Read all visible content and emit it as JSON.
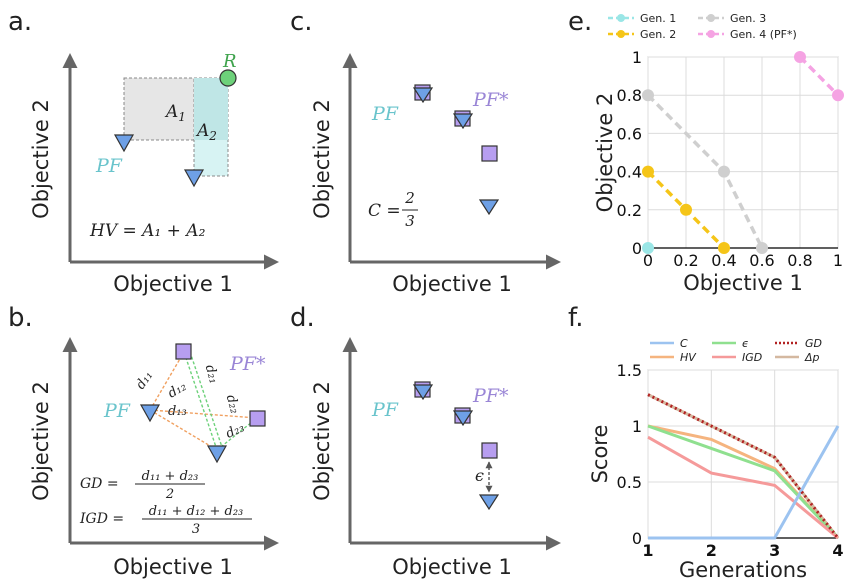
{
  "colors": {
    "pf_blue": "#6ea0e6",
    "pfstar_purple": "#b79ef0",
    "teal_text": "#6ac4cc",
    "purple_text": "#9a86d6",
    "green_R": "#6dd17a",
    "gen1": "#9ae6e6",
    "gen2": "#f5c518",
    "gen3": "#cfcfcf",
    "gen4": "#f5a3e3"
  },
  "panels": {
    "a": {
      "label": "a.",
      "xlabel": "Objective 1",
      "ylabel": "Objective 2",
      "ref": "R",
      "pf": "PF",
      "area1": "A",
      "area1_sub": "1",
      "area2": "A",
      "area2_sub": "2",
      "formula": "HV = A₁ + A₂"
    },
    "b": {
      "label": "b.",
      "xlabel": "Objective 1",
      "ylabel": "Objective 2",
      "pf": "PF",
      "pfstar": "PF*",
      "d11": "d₁₁",
      "d12": "d₁₂",
      "d13": "d₁₃",
      "d21": "d₂₁",
      "d22": "d₂₂",
      "d23": "d₂₃",
      "gd_lhs": "GD =",
      "gd_num": "d₁₁ + d₂₃",
      "gd_den": "2",
      "igd_lhs": "IGD =",
      "igd_num": "d₁₁ + d₁₂ + d₂₃",
      "igd_den": "3"
    },
    "c": {
      "label": "c.",
      "xlabel": "Objective 1",
      "ylabel": "Objective 2",
      "pf": "PF",
      "pfstar": "PF*",
      "c_lhs": "C =",
      "c_num": "2",
      "c_den": "3"
    },
    "d": {
      "label": "d.",
      "xlabel": "Objective 1",
      "ylabel": "Objective 2",
      "pf": "PF",
      "pfstar": "PF*",
      "eps": "ϵ"
    },
    "e": {
      "label": "e."
    },
    "f": {
      "label": "f."
    }
  },
  "chart_data": [
    {
      "type": "line",
      "xlabel": "Objective 1",
      "ylabel": "Objective 2",
      "xlim": [
        0,
        1
      ],
      "ylim": [
        0,
        1
      ],
      "xticks": [
        "0",
        "0.2",
        "0.4",
        "0.6",
        "0.8",
        "1"
      ],
      "yticks": [
        "0",
        "0.2",
        "0.4",
        "0.6",
        "0.8",
        "1"
      ],
      "grid": true,
      "legend_position": "top",
      "series": [
        {
          "name": "Gen. 1",
          "color": "#9ae6e6",
          "points": [
            [
              0,
              0
            ]
          ]
        },
        {
          "name": "Gen. 2",
          "color": "#f5c518",
          "points": [
            [
              0,
              0.4
            ],
            [
              0.2,
              0.2
            ],
            [
              0.4,
              0
            ]
          ]
        },
        {
          "name": "Gen. 3",
          "color": "#cfcfcf",
          "points": [
            [
              0,
              0.8
            ],
            [
              0.4,
              0.4
            ],
            [
              0.6,
              0
            ]
          ]
        },
        {
          "name": "Gen. 4 (PF*)",
          "color": "#f5a3e3",
          "points": [
            [
              0.8,
              1
            ],
            [
              1,
              0.8
            ]
          ]
        }
      ]
    },
    {
      "type": "line",
      "xlabel": "Generations",
      "ylabel": "Score",
      "categories": [
        "1",
        "2",
        "3",
        "4"
      ],
      "category_colors": [
        "#7fd6d6",
        "#d9b000",
        "#aaaaaa",
        "#e98fd6"
      ],
      "ylim": [
        0,
        1.5
      ],
      "yticks": [
        "0",
        "0.5",
        "1",
        "1.5"
      ],
      "grid": true,
      "legend_position": "top",
      "series": [
        {
          "name": "C",
          "color": "#9cc3f0",
          "values": [
            0,
            0,
            0,
            1
          ]
        },
        {
          "name": "HV",
          "color": "#f5b47f",
          "values": [
            1,
            0.88,
            0.62,
            0
          ]
        },
        {
          "name": "ϵ",
          "color": "#8fe08f",
          "values": [
            1,
            0.8,
            0.6,
            0
          ]
        },
        {
          "name": "IGD",
          "color": "#f59a9a",
          "values": [
            0.9,
            0.58,
            0.47,
            0
          ]
        },
        {
          "name": "GD",
          "color": "#b22222",
          "dotted": true,
          "values": [
            1.28,
            1.0,
            0.72,
            0
          ]
        },
        {
          "name": "Δp",
          "color": "#d4b8a0",
          "values": [
            1.28,
            1.0,
            0.72,
            0
          ]
        }
      ]
    }
  ]
}
